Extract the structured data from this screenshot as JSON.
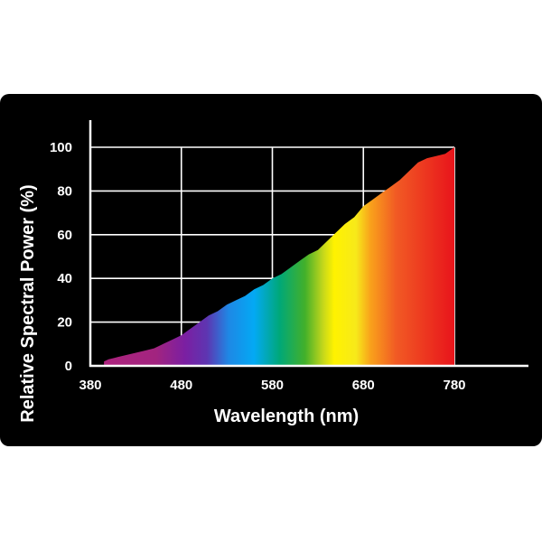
{
  "chart_data": {
    "type": "area",
    "xlabel": "Wavelength (nm)",
    "ylabel": "Relative Spectral Power (%)",
    "xlim": [
      380,
      780
    ],
    "ylim": [
      0,
      100
    ],
    "x_ticks": [
      "380",
      "480",
      "580",
      "680",
      "780"
    ],
    "y_ticks": [
      "0",
      "20",
      "40",
      "60",
      "80",
      "100"
    ],
    "grid": true,
    "fill": "visible-spectrum gradient",
    "series": [
      {
        "x": [
          395,
          400,
          410,
          420,
          430,
          440,
          450,
          460,
          470,
          480,
          490,
          500,
          510,
          520,
          530,
          540,
          550,
          560,
          570,
          580,
          590,
          600,
          610,
          620,
          630,
          640,
          650,
          660,
          670,
          680,
          690,
          700,
          710,
          720,
          730,
          740,
          750,
          760,
          770,
          780
        ],
        "y": [
          2,
          3,
          4,
          5,
          6,
          7,
          8,
          10,
          12,
          14,
          17,
          20,
          23,
          25,
          28,
          30,
          32,
          35,
          37,
          40,
          42,
          45,
          48,
          51,
          53,
          57,
          61,
          65,
          68,
          73,
          76,
          79,
          82,
          85,
          89,
          93,
          95,
          96,
          97,
          100
        ]
      }
    ]
  }
}
